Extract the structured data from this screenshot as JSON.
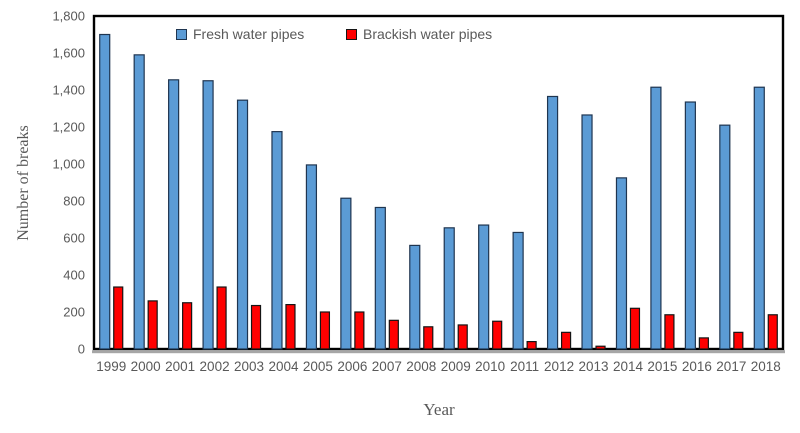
{
  "chart_data": {
    "type": "bar",
    "title": "",
    "xlabel": "Year",
    "ylabel": "Number of breaks",
    "ylim": [
      0,
      1800
    ],
    "ytick_step": 200,
    "grid": false,
    "legend_position": "top-center-inside",
    "categories": [
      "1999",
      "2000",
      "2001",
      "2002",
      "2003",
      "2004",
      "2005",
      "2006",
      "2007",
      "2008",
      "2009",
      "2010",
      "2011",
      "2012",
      "2013",
      "2014",
      "2015",
      "2016",
      "2017",
      "2018"
    ],
    "series": [
      {
        "name": "Fresh water pipes",
        "fill_color": "#5B9BD5",
        "border_color": "#1F3550",
        "values": [
          1700,
          1590,
          1455,
          1450,
          1345,
          1175,
          995,
          815,
          765,
          560,
          655,
          670,
          630,
          1365,
          1265,
          925,
          1415,
          1335,
          1210,
          1415
        ]
      },
      {
        "name": "Brackish water pipes",
        "fill_color": "#FF0000",
        "border_color": "#151515",
        "values": [
          335,
          260,
          250,
          335,
          235,
          240,
          200,
          200,
          155,
          120,
          130,
          150,
          40,
          90,
          15,
          220,
          185,
          60,
          90,
          185
        ]
      }
    ]
  },
  "styles": {
    "text_color": "#595959",
    "axis_border_color": "#000000",
    "baseline_color": "#A6A6A6",
    "background": "#FFFFFF"
  }
}
